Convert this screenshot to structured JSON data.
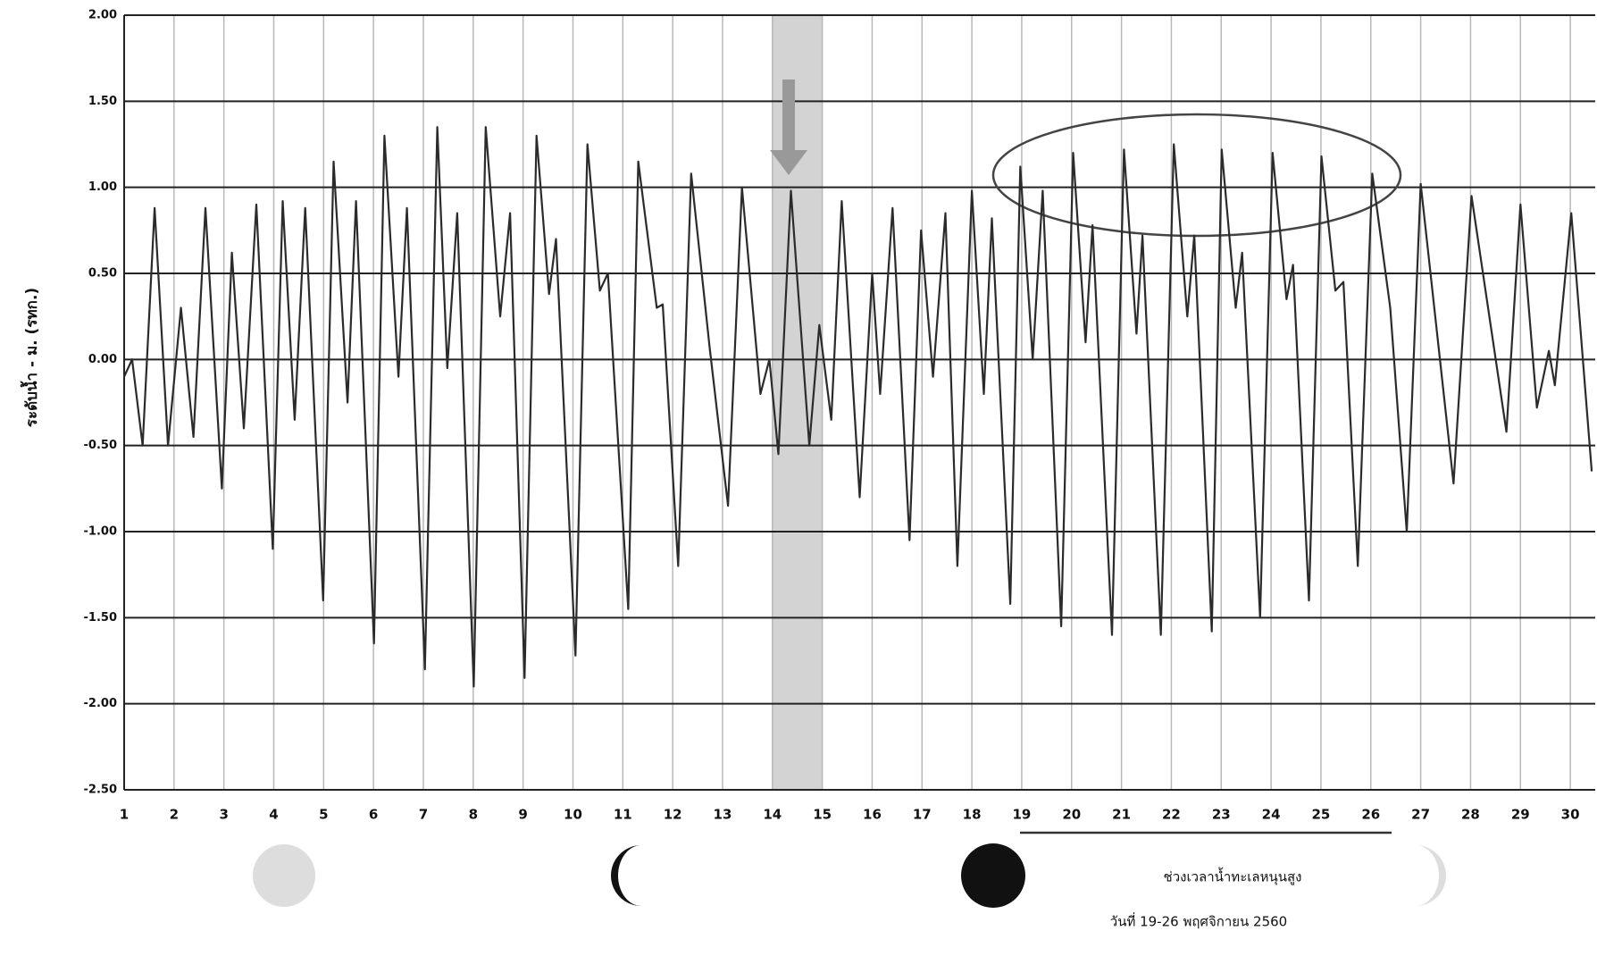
{
  "chart_data": {
    "type": "line",
    "y_label": "ระดับน้ำ - ม. (รทก.)",
    "annotations": [
      "ช่วงเวลาน้ำทะเลหนุนสูง",
      "วันที่ 19-26 พฤศจิกายน 2560"
    ],
    "shaded_range": [
      14,
      15
    ],
    "grid": true,
    "xlim": [
      1,
      30.5
    ],
    "xticks": [
      1,
      2,
      3,
      4,
      5,
      6,
      7,
      8,
      9,
      10,
      11,
      12,
      13,
      14,
      15,
      16,
      17,
      18,
      19,
      20,
      21,
      22,
      23,
      24,
      25,
      26,
      27,
      28,
      29,
      30
    ],
    "ylim": [
      -2.5,
      2.0
    ],
    "yticks": [
      {
        "value": 2.0,
        "label": "2.00"
      },
      {
        "value": 1.5,
        "label": "1.50"
      },
      {
        "value": 1.0,
        "label": "1.00"
      },
      {
        "value": 0.5,
        "label": "0.50"
      },
      {
        "value": 0,
        "label": "0.00"
      },
      {
        "value": -0.5,
        "label": "-0.50"
      },
      {
        "value": -1.0,
        "label": "-1.00"
      },
      {
        "value": -1.5,
        "label": "-1.50"
      },
      {
        "value": -2.0,
        "label": "-2.00"
      },
      {
        "value": -2.5,
        "label": "-2.50"
      }
    ],
    "x": [
      1.0,
      1.16,
      1.37,
      1.61,
      1.88,
      2.14,
      2.39,
      2.63,
      2.96,
      3.16,
      3.4,
      3.65,
      3.98,
      4.18,
      4.42,
      4.63,
      4.99,
      5.2,
      5.48,
      5.65,
      6.01,
      6.22,
      6.5,
      6.67,
      7.03,
      7.28,
      7.48,
      7.68,
      8.01,
      8.25,
      8.54,
      8.74,
      9.03,
      9.27,
      9.52,
      9.66,
      10.05,
      10.29,
      10.54,
      10.7,
      11.11,
      11.31,
      11.68,
      11.8,
      12.11,
      12.37,
      12.74,
      13.11,
      13.39,
      13.76,
      13.94,
      14.12,
      14.37,
      14.74,
      14.94,
      15.18,
      15.39,
      15.75,
      16.0,
      16.16,
      16.41,
      16.75,
      16.98,
      17.22,
      17.47,
      17.71,
      18.0,
      18.24,
      18.4,
      18.77,
      18.97,
      19.22,
      19.42,
      19.79,
      20.03,
      20.28,
      20.42,
      20.81,
      21.05,
      21.3,
      21.42,
      21.79,
      22.05,
      22.32,
      22.46,
      22.81,
      23.01,
      23.29,
      23.42,
      23.78,
      24.03,
      24.31,
      24.44,
      24.76,
      25.01,
      25.29,
      25.45,
      25.74,
      26.03,
      26.39,
      26.72,
      27.0,
      27.66,
      28.02,
      28.72,
      29.0,
      29.33,
      29.57,
      29.69,
      30.02,
      30.43
    ],
    "series": [
      {
        "color": "#2b2b2b",
        "values": [
          -0.1,
          0.0,
          -0.5,
          0.88,
          -0.5,
          0.3,
          -0.45,
          0.88,
          -0.75,
          0.62,
          -0.4,
          0.9,
          -1.1,
          0.92,
          -0.35,
          0.88,
          -1.4,
          1.15,
          -0.25,
          0.92,
          -1.65,
          1.3,
          -0.1,
          0.88,
          -1.8,
          1.35,
          -0.05,
          0.85,
          -1.9,
          1.35,
          0.25,
          0.85,
          -1.85,
          1.3,
          0.38,
          0.7,
          -1.72,
          1.25,
          0.4,
          0.5,
          -1.45,
          1.15,
          0.3,
          0.32,
          -1.2,
          1.08,
          0.07,
          -0.85,
          1.0,
          -0.2,
          0.0,
          -0.55,
          0.98,
          -0.5,
          0.2,
          -0.35,
          0.92,
          -0.8,
          0.5,
          -0.2,
          0.88,
          -1.05,
          0.75,
          -0.1,
          0.85,
          -1.2,
          0.98,
          -0.2,
          0.82,
          -1.42,
          1.12,
          0.0,
          0.98,
          -1.55,
          1.2,
          0.1,
          0.78,
          -1.6,
          1.22,
          0.15,
          0.72,
          -1.6,
          1.25,
          0.25,
          0.72,
          -1.58,
          1.22,
          0.3,
          0.62,
          -1.5,
          1.2,
          0.35,
          0.55,
          -1.4,
          1.18,
          0.4,
          0.45,
          -1.2,
          1.08,
          0.3,
          -1.0,
          1.02,
          -0.72,
          0.95,
          -0.42,
          0.9,
          -0.28,
          0.05,
          -0.15,
          0.85,
          -0.65
        ]
      }
    ]
  }
}
